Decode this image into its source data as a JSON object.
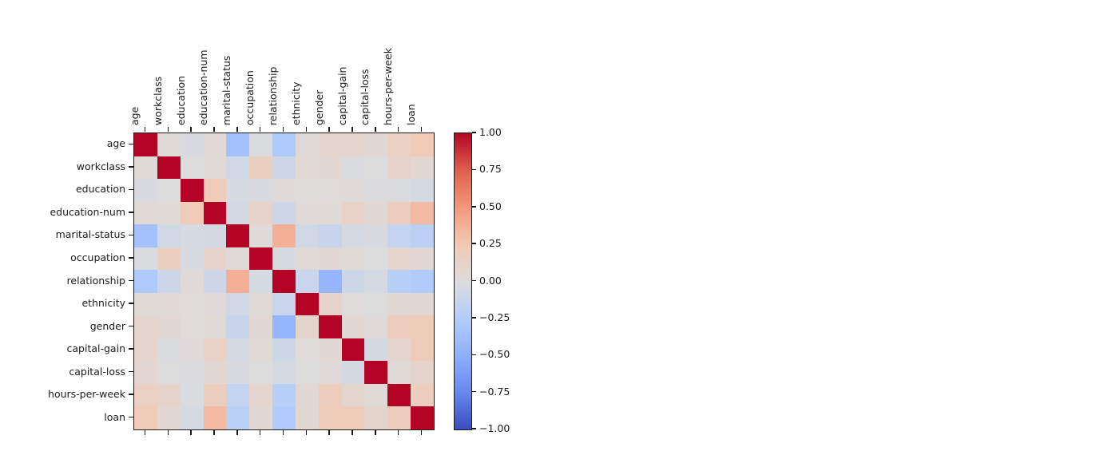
{
  "figure": {
    "background": "#ffffff",
    "text_color": "#1c1c1c"
  },
  "chart_data": {
    "type": "heatmap",
    "title": "",
    "x_tick_labels": [
      "age",
      "workclass",
      "education",
      "education-num",
      "marital-status",
      "occupation",
      "relationship",
      "ethnicity",
      "gender",
      "capital-gain",
      "capital-loss",
      "hours-per-week",
      "loan"
    ],
    "y_tick_labels": [
      "age",
      "workclass",
      "education",
      "education-num",
      "marital-status",
      "occupation",
      "relationship",
      "ethnicity",
      "gender",
      "capital-gain",
      "capital-loss",
      "hours-per-week",
      "loan"
    ],
    "matrix": [
      [
        1.0,
        0.03,
        -0.03,
        0.04,
        -0.35,
        -0.02,
        -0.28,
        0.03,
        0.08,
        0.09,
        0.06,
        0.15,
        0.23
      ],
      [
        0.03,
        1.0,
        0.0,
        0.03,
        -0.07,
        0.17,
        -0.1,
        0.04,
        0.06,
        -0.02,
        0.0,
        0.12,
        0.07
      ],
      [
        -0.03,
        0.0,
        1.0,
        0.22,
        -0.04,
        -0.03,
        0.02,
        0.01,
        0.01,
        0.02,
        -0.01,
        -0.02,
        -0.05
      ],
      [
        0.04,
        0.03,
        0.22,
        1.0,
        -0.06,
        0.11,
        -0.09,
        0.02,
        0.03,
        0.13,
        0.06,
        0.18,
        0.32
      ],
      [
        -0.35,
        -0.07,
        -0.04,
        -0.06,
        1.0,
        0.02,
        0.38,
        -0.07,
        -0.13,
        -0.05,
        -0.03,
        -0.15,
        -0.2
      ],
      [
        -0.02,
        0.17,
        -0.03,
        0.11,
        0.02,
        1.0,
        -0.04,
        0.03,
        0.06,
        0.03,
        0.0,
        0.09,
        0.06
      ],
      [
        -0.28,
        -0.1,
        0.02,
        -0.09,
        0.38,
        -0.04,
        1.0,
        -0.12,
        -0.45,
        -0.09,
        -0.05,
        -0.22,
        -0.26
      ],
      [
        0.03,
        0.04,
        0.01,
        0.02,
        -0.07,
        0.03,
        -0.12,
        1.0,
        0.1,
        0.01,
        0.0,
        0.05,
        0.07
      ],
      [
        0.08,
        0.06,
        0.01,
        0.03,
        -0.13,
        0.06,
        -0.45,
        0.1,
        1.0,
        0.05,
        0.02,
        0.19,
        0.21
      ],
      [
        0.09,
        -0.02,
        0.02,
        0.13,
        -0.05,
        0.03,
        -0.09,
        0.01,
        0.05,
        1.0,
        -0.06,
        0.08,
        0.21
      ],
      [
        0.06,
        0.0,
        -0.01,
        0.06,
        -0.03,
        0.0,
        -0.05,
        0.0,
        0.02,
        -0.06,
        1.0,
        0.03,
        0.1
      ],
      [
        0.15,
        0.12,
        -0.02,
        0.18,
        -0.15,
        0.09,
        -0.22,
        0.05,
        0.19,
        0.08,
        0.03,
        1.0,
        0.18
      ],
      [
        0.23,
        0.07,
        -0.05,
        0.32,
        -0.2,
        0.06,
        -0.26,
        0.07,
        0.21,
        0.21,
        0.1,
        0.18,
        1.0
      ]
    ],
    "vmin": -1,
    "vmax": 1,
    "colormap": {
      "name": "coolwarm",
      "anchors": [
        {
          "t": 0.0,
          "color": "#3b4cc0"
        },
        {
          "t": 0.125,
          "color": "#6788ee"
        },
        {
          "t": 0.25,
          "color": "#8db0fe"
        },
        {
          "t": 0.375,
          "color": "#b3cdfb"
        },
        {
          "t": 0.5,
          "color": "#dddcdc"
        },
        {
          "t": 0.625,
          "color": "#f2c9b4"
        },
        {
          "t": 0.75,
          "color": "#f4987a"
        },
        {
          "t": 0.875,
          "color": "#de604d"
        },
        {
          "t": 1.0,
          "color": "#b40426"
        }
      ]
    },
    "colorbar": {
      "tick_labels": [
        "1.00",
        "0.75",
        "0.50",
        "0.25",
        "0.00",
        "−0.25",
        "−0.50",
        "−0.75",
        "−1.00"
      ],
      "tick_values": [
        1.0,
        0.75,
        0.5,
        0.25,
        0.0,
        -0.25,
        -0.5,
        -0.75,
        -1.0
      ],
      "position": "right"
    },
    "layout_hints": {
      "x_labels_position": "top",
      "x_labels_rotation": 90,
      "grid": false
    }
  }
}
